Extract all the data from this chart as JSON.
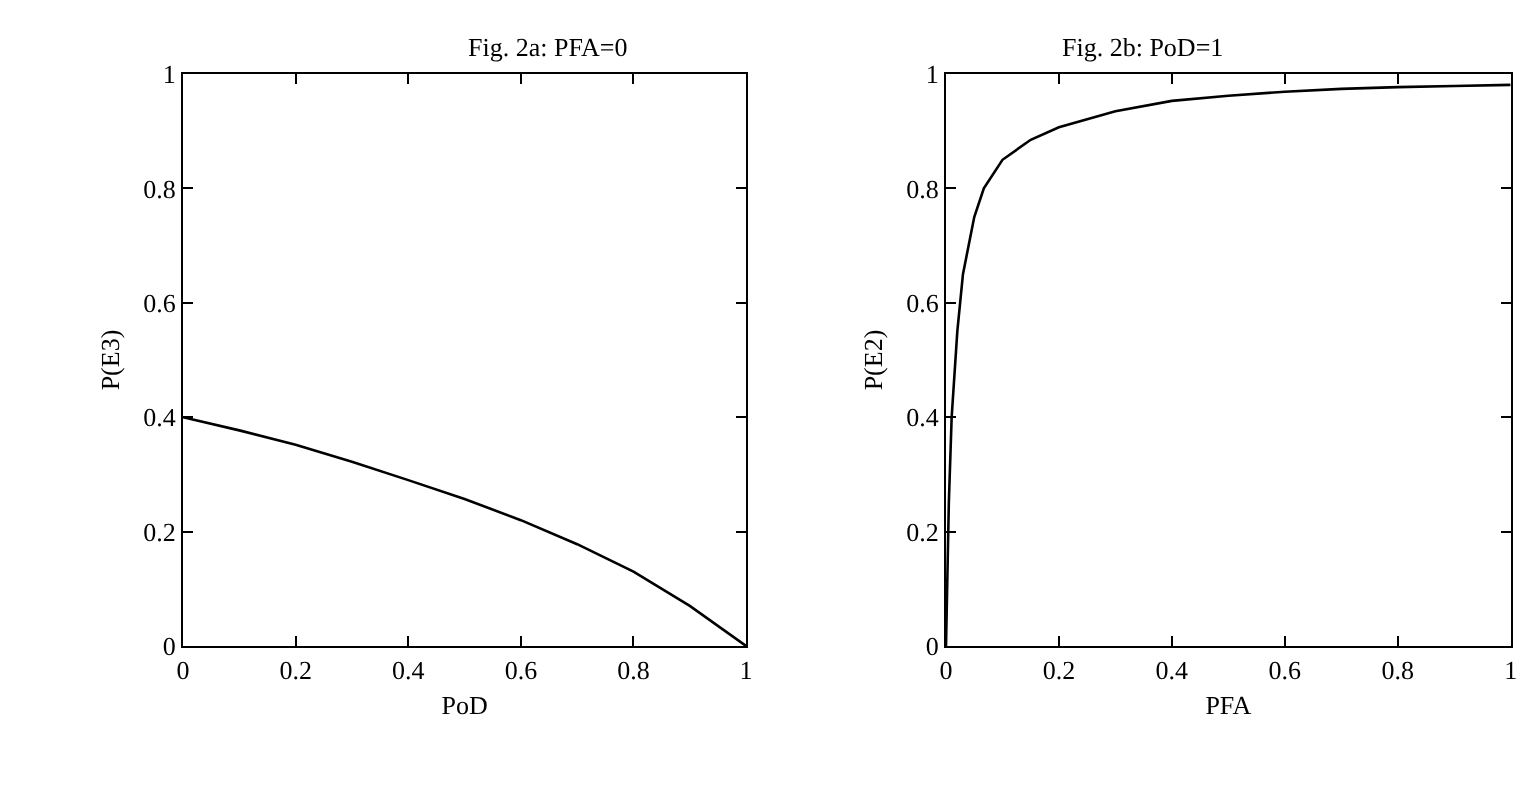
{
  "chart_data": [
    {
      "type": "line",
      "title": "Fig. 2a: PFA=0",
      "xlabel": "PoD",
      "ylabel": "P(E3)",
      "x": [
        0,
        0.1,
        0.2,
        0.3,
        0.4,
        0.5,
        0.6,
        0.7,
        0.8,
        0.9,
        1
      ],
      "series": [
        {
          "color": "#000000",
          "values": [
            0.4,
            0.377,
            0.352,
            0.322,
            0.29,
            0.257,
            0.22,
            0.178,
            0.13,
            0.07,
            0
          ]
        }
      ],
      "xlim": [
        0,
        1
      ],
      "ylim": [
        0,
        1
      ],
      "xticks": [
        0,
        0.2,
        0.4,
        0.6,
        0.8,
        1
      ],
      "yticks": [
        0,
        0.2,
        0.4,
        0.6,
        0.8,
        1
      ],
      "marker": "none",
      "line_style": "solid"
    },
    {
      "type": "line",
      "title": "Fig. 2b: PoD=1",
      "xlabel": "PFA",
      "ylabel": "P(E2)",
      "x": [
        0,
        0.005,
        0.01,
        0.02,
        0.03,
        0.05,
        0.067,
        0.1,
        0.15,
        0.2,
        0.3,
        0.4,
        0.5,
        0.6,
        0.7,
        0.8,
        0.9,
        1
      ],
      "series": [
        {
          "color": "#000000",
          "values": [
            0,
            0.25,
            0.4,
            0.55,
            0.65,
            0.75,
            0.8,
            0.85,
            0.885,
            0.907,
            0.935,
            0.953,
            0.962,
            0.969,
            0.974,
            0.977,
            0.979,
            0.981
          ]
        }
      ],
      "xlim": [
        0,
        1
      ],
      "ylim": [
        0,
        1
      ],
      "xticks": [
        0,
        0.2,
        0.4,
        0.6,
        0.8,
        1
      ],
      "yticks": [
        0,
        0.2,
        0.4,
        0.6,
        0.8,
        1
      ],
      "marker": "none",
      "line_style": "solid"
    }
  ]
}
